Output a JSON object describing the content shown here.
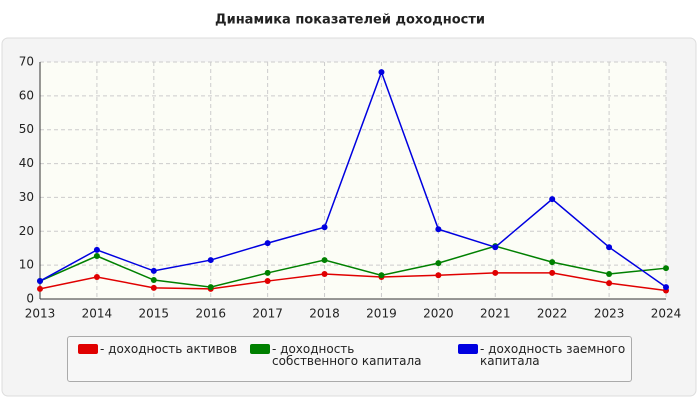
{
  "chart_data": {
    "type": "line",
    "title": "Динамика показателей доходности",
    "categories": [
      "2013",
      "2014",
      "2015",
      "2016",
      "2017",
      "2018",
      "2019",
      "2020",
      "2021",
      "2022",
      "2023",
      "2024"
    ],
    "series": [
      {
        "name": "- доходность активов",
        "color": "#e00000",
        "values": [
          3,
          6.5,
          3.3,
          3,
          5.3,
          7.4,
          6.5,
          7,
          7.7,
          7.7,
          4.7,
          2.5
        ]
      },
      {
        "name": "- доходность собственного капитала",
        "color": "#008000",
        "values": [
          5.3,
          12.7,
          5.6,
          3.5,
          7.7,
          11.5,
          7,
          10.6,
          15.6,
          10.9,
          7.4,
          9.1
        ]
      },
      {
        "name": "- доходность заемного капитала",
        "color": "#0000e0",
        "values": [
          5.3,
          14.5,
          8.3,
          11.5,
          16.5,
          21.2,
          67,
          20.6,
          15.3,
          29.5,
          15.3,
          3.5
        ]
      }
    ],
    "ylim": [
      0,
      70
    ],
    "yticks": [
      0,
      10,
      20,
      30,
      40,
      50,
      60,
      70
    ],
    "grid": true
  }
}
